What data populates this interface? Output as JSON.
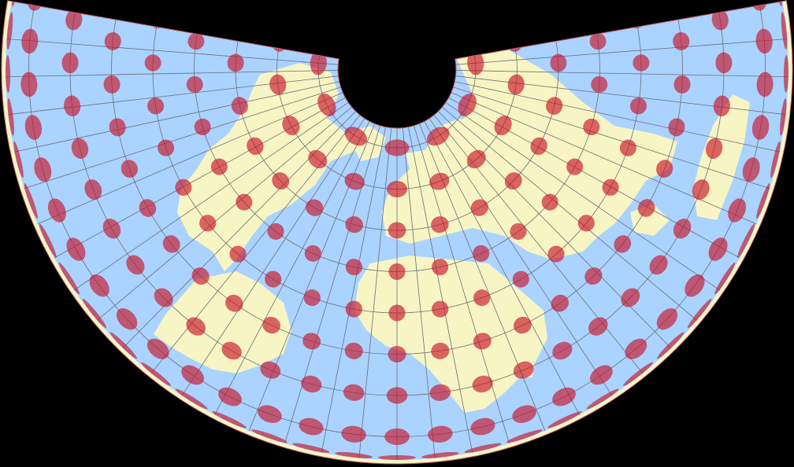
{
  "map": {
    "title": "",
    "colors": {
      "background": "#000000",
      "ocean": "#aad3ff",
      "land": "#f7f5c4",
      "graticule": "#6e6e78",
      "indicatrix": "#c8142a",
      "outline": "#c06070"
    },
    "graticule_step_deg": 10,
    "indicatrix_opacity": 0.65
  }
}
